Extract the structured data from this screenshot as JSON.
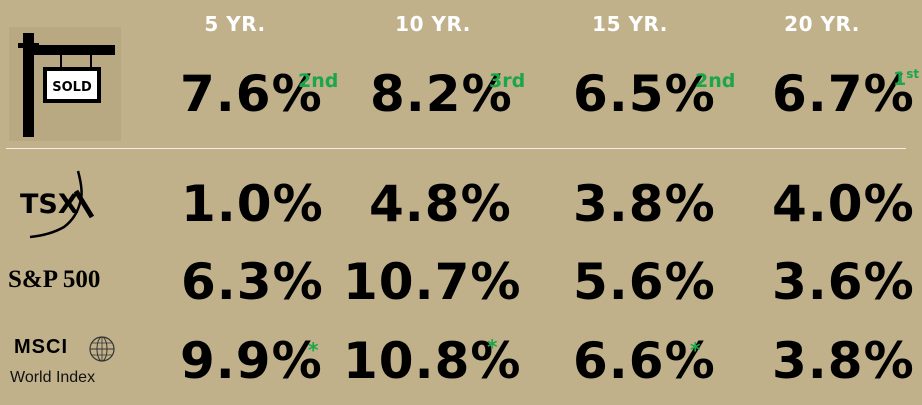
{
  "headers": [
    "5 YR.",
    "10 YR.",
    "15 YR.",
    "20 YR."
  ],
  "real_estate": {
    "sign_text": "SOLD",
    "values": [
      "7.6%",
      "8.2%",
      "6.5%",
      "6.7%"
    ],
    "ranks": [
      {
        "main": "2nd",
        "sup": ""
      },
      {
        "main": "3rd",
        "sup": ""
      },
      {
        "main": "2nd",
        "sup": ""
      },
      {
        "main": "1",
        "sup": "st"
      }
    ]
  },
  "tsx": {
    "label": "TSX",
    "values": [
      "1.0%",
      "4.8%",
      "3.8%",
      "4.0%"
    ]
  },
  "sp500": {
    "label": "S&P 500",
    "values": [
      "6.3%",
      "10.7%",
      "5.6%",
      "3.6%"
    ]
  },
  "msci": {
    "label": "MSCI",
    "sublabel": "World Index",
    "values": [
      "9.9%",
      "10.8%",
      "6.6%",
      "3.8%"
    ],
    "marker": "*"
  },
  "colors": {
    "background": "#c0b18b",
    "header_text": "#ffffff",
    "value_text": "#000000",
    "rank_text": "#1ba64a"
  }
}
